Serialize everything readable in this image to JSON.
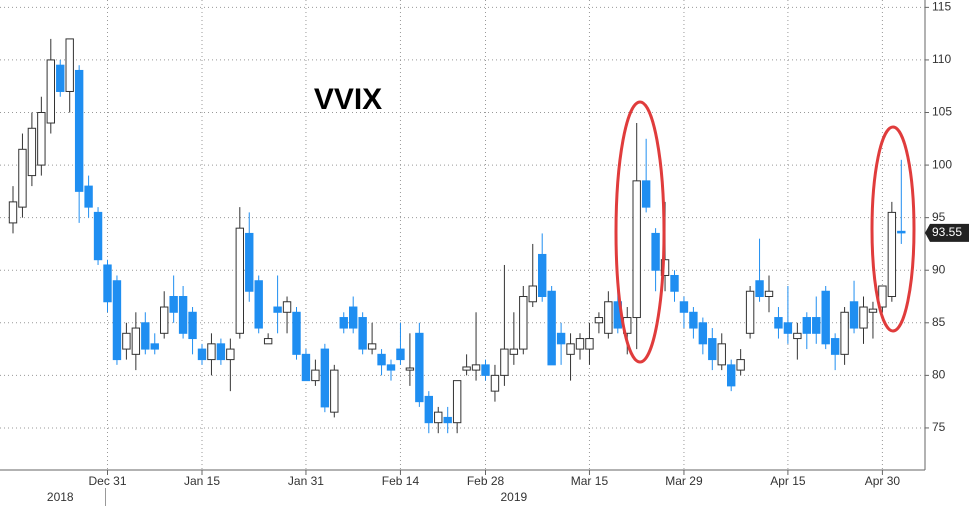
{
  "chart_data": {
    "type": "candlestick",
    "title": "VVIX",
    "categories": [
      null,
      null,
      null,
      null,
      null,
      null,
      null,
      null,
      null,
      null,
      null,
      null,
      null,
      null,
      null,
      null,
      null,
      null,
      null,
      null,
      null,
      null,
      null,
      null,
      null,
      null,
      null,
      null,
      null,
      null,
      null,
      null,
      null,
      null,
      null,
      null,
      null,
      null,
      null,
      null,
      null,
      null,
      null,
      null,
      null,
      null,
      null,
      null,
      null,
      null,
      null,
      null,
      null,
      null,
      null,
      null,
      null,
      null,
      null,
      null,
      null,
      null,
      null,
      null,
      null,
      null,
      null,
      null,
      null,
      null,
      null,
      null,
      null,
      null,
      null,
      null,
      null,
      null,
      null,
      null,
      null,
      null,
      null,
      null,
      null,
      null,
      null,
      null,
      null,
      null,
      null,
      null,
      null,
      null,
      null
    ],
    "open": [
      94.5,
      96,
      99,
      100,
      104,
      109.5,
      107,
      109,
      98,
      95.5,
      90.5,
      89,
      82.5,
      82,
      85,
      83,
      84,
      87.5,
      87.5,
      86,
      82.5,
      81.5,
      83,
      81.5,
      84,
      93.5,
      89,
      83,
      86.5,
      86,
      86,
      82,
      79.5,
      82.5,
      76.5,
      85.5,
      86.5,
      85.5,
      82.5,
      82,
      81,
      82.5,
      80.5,
      84,
      78,
      75.5,
      76,
      75.5,
      80.5,
      80.5,
      81,
      78.5,
      80,
      82,
      82.5,
      87,
      91.5,
      88,
      84,
      82,
      82.5,
      82.5,
      85,
      84,
      87,
      84,
      85.5,
      98.5,
      93.5,
      89.5,
      89.5,
      87,
      86,
      85,
      83.5,
      81,
      81,
      80.5,
      84,
      89,
      87.5,
      85.5,
      85,
      83.5,
      85.5,
      85.5,
      88,
      83.5,
      82,
      87,
      84.5,
      86,
      86.5,
      87.5,
      93.7
    ],
    "high": [
      98,
      103,
      105,
      106.5,
      112,
      110,
      112,
      109.5,
      99,
      96,
      91,
      89.5,
      85,
      86,
      86,
      84,
      88,
      89.5,
      88.5,
      86.5,
      83,
      84,
      83.5,
      83.5,
      96,
      95.5,
      89.5,
      84,
      89.5,
      87.5,
      86.5,
      82.5,
      81.5,
      83,
      81,
      86,
      87.5,
      86,
      85,
      82.5,
      81.5,
      85,
      84,
      85,
      78.5,
      77,
      77,
      79.5,
      82,
      86,
      81.5,
      81,
      90.5,
      86,
      88.5,
      92.5,
      93.5,
      88.5,
      85,
      84,
      84,
      85,
      86,
      88,
      88.5,
      86.5,
      104,
      102.5,
      94,
      96.5,
      90,
      87.5,
      86.5,
      85.5,
      84.5,
      84,
      81.5,
      82.5,
      88.5,
      93,
      89.5,
      86.5,
      88.5,
      85,
      86,
      87.5,
      88.5,
      84,
      86.5,
      89,
      87.5,
      87,
      88.5,
      96.5,
      100.5
    ],
    "low": [
      93.5,
      95,
      98,
      99,
      103,
      106.5,
      105,
      94.5,
      95,
      90.5,
      86,
      81,
      81.5,
      80.5,
      82,
      82,
      83.5,
      85,
      83.5,
      82,
      81,
      80,
      81,
      78.5,
      83.5,
      87,
      84,
      83,
      84,
      84,
      81.5,
      79.5,
      79,
      76.5,
      76,
      84,
      84,
      82,
      82,
      80,
      79.5,
      81,
      79,
      77,
      74.5,
      74.5,
      74.5,
      74.5,
      80,
      79.5,
      79.5,
      77.5,
      79,
      81,
      82,
      86.5,
      87,
      81,
      81,
      79.5,
      81.5,
      81,
      84,
      83.5,
      84,
      82,
      82.5,
      95.5,
      88,
      88,
      87,
      84.5,
      83.5,
      82,
      80.5,
      80.5,
      78.5,
      80,
      83.5,
      87,
      86,
      83.5,
      83,
      81.5,
      82.5,
      83,
      82.5,
      80.5,
      81,
      84,
      83,
      83.5,
      86,
      87,
      92.5
    ],
    "close": [
      96.5,
      101.5,
      103.5,
      105,
      110,
      107,
      112,
      97.5,
      96,
      91,
      87,
      81.5,
      84,
      84.5,
      82.5,
      82.5,
      86.5,
      86,
      84,
      83.5,
      81.5,
      83,
      81.5,
      82.5,
      94,
      88,
      84.5,
      83.5,
      86,
      87,
      82,
      79.5,
      80.5,
      77,
      80.5,
      84.5,
      84.5,
      82.5,
      83,
      81,
      80.5,
      81.5,
      80.7,
      77.5,
      75.5,
      76.5,
      75.5,
      79.5,
      80.8,
      81,
      80,
      80,
      82.5,
      82.5,
      87.5,
      88.5,
      87.5,
      81,
      83,
      83,
      83.5,
      83.5,
      85.5,
      87,
      84.5,
      85.5,
      98.5,
      96,
      90,
      91,
      88,
      86,
      84.5,
      83,
      81.5,
      83,
      79,
      81.5,
      88,
      87.5,
      88,
      84.5,
      84,
      84,
      84,
      84,
      83,
      82,
      86,
      84.5,
      86.5,
      86.3,
      88.5,
      95.5,
      93.55
    ],
    "up_color": "#ffffff",
    "down_color": "#1f8ef1",
    "last_price": 93.55,
    "ylim": [
      71,
      115.7
    ],
    "yticks": [
      75,
      80,
      85,
      90,
      95,
      100,
      105,
      110,
      115
    ],
    "xticks": [
      {
        "value": 10,
        "label": "Dec 31"
      },
      {
        "value": 20,
        "label": "Jan 15"
      },
      {
        "value": 31,
        "label": "Jan 31"
      },
      {
        "value": 41,
        "label": "Feb 14"
      },
      {
        "value": 50,
        "label": "Feb 28"
      },
      {
        "value": 61,
        "label": "Mar 15"
      },
      {
        "value": 71,
        "label": "Mar 29"
      },
      {
        "value": 82,
        "label": "Apr 15"
      },
      {
        "value": 92,
        "label": "Apr 30"
      }
    ],
    "year_labels": [
      {
        "value": 5,
        "label": "2018"
      },
      {
        "value": 53,
        "label": "2019"
      }
    ],
    "grid": true
  }
}
